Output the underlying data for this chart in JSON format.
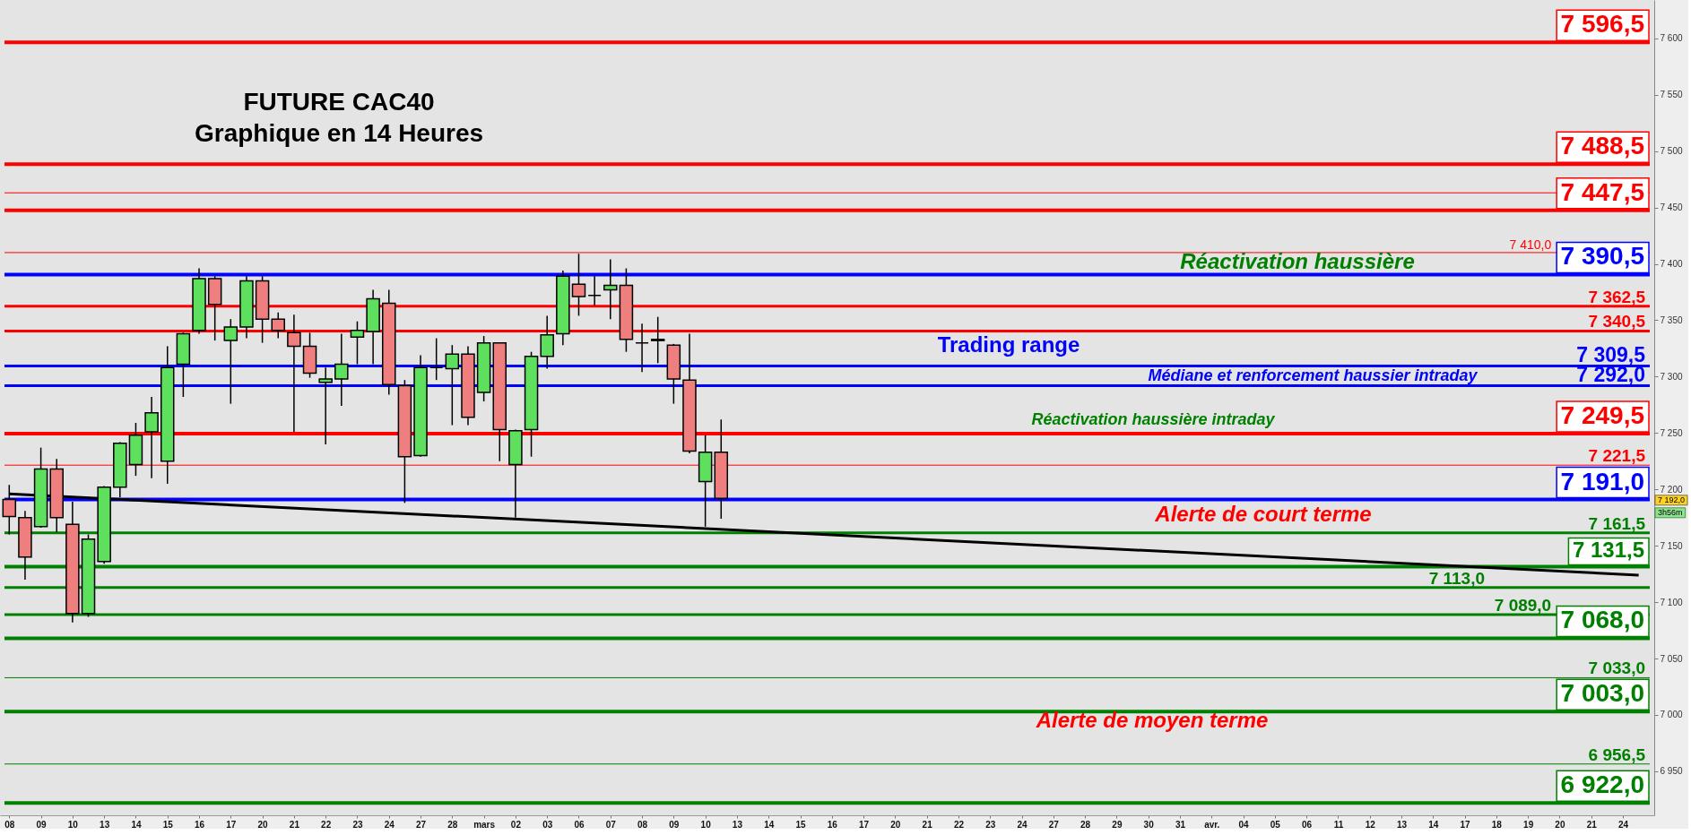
{
  "chart_data": {
    "type": "candlestick",
    "title": "FUTURE CAC40",
    "subtitle": "Graphique en 14 Heures",
    "categories": [
      "08",
      null,
      "09",
      null,
      "10",
      null,
      "13",
      null,
      "14",
      null,
      "15",
      null,
      "16",
      null,
      "17",
      null,
      "20",
      null,
      "21",
      null,
      "22",
      null,
      "23",
      null,
      "24",
      null,
      "27",
      null,
      "28",
      null,
      "mars",
      null,
      "02",
      null,
      "03",
      null,
      "06",
      null,
      "07",
      null,
      "08",
      null,
      "09",
      null,
      "10",
      null,
      "13",
      null,
      "14",
      null,
      "15",
      null,
      "16",
      null,
      "17",
      null,
      "20",
      null,
      "21",
      null,
      "22",
      null,
      "23",
      null,
      "24",
      null,
      "27",
      null,
      "28",
      null,
      "29",
      null,
      "30",
      null,
      "31",
      null,
      "avr.",
      null,
      "04",
      null,
      "05",
      null,
      "06",
      null,
      "11",
      null,
      "12",
      null,
      "13",
      null,
      "14",
      null,
      "17",
      null,
      "18",
      null,
      "19",
      null,
      "20",
      null,
      "21",
      null,
      "24",
      null
    ],
    "ohlc": [
      [
        7191,
        7204,
        7160,
        7176
      ],
      [
        7175,
        7181,
        7120,
        7140
      ],
      [
        7167,
        7237,
        7166,
        7218
      ],
      [
        7218,
        7227,
        7162,
        7175
      ],
      [
        7169,
        7189,
        7082,
        7090
      ],
      [
        7090,
        7160,
        7087,
        7156
      ],
      [
        7136,
        7203,
        7134,
        7202
      ],
      [
        7202,
        7242,
        7193,
        7241
      ],
      [
        7222,
        7259,
        7212,
        7248
      ],
      [
        7251,
        7282,
        7210,
        7268
      ],
      [
        7225,
        7327,
        7205,
        7308
      ],
      [
        7311,
        7339,
        7282,
        7338
      ],
      [
        7341,
        7396,
        7338,
        7387
      ],
      [
        7387,
        7389,
        7332,
        7364
      ],
      [
        7332,
        7351,
        7276,
        7344
      ],
      [
        7344,
        7389,
        7334,
        7385
      ],
      [
        7385,
        7389,
        7330,
        7351
      ],
      [
        7351,
        7357,
        7334,
        7341
      ],
      [
        7339,
        7355,
        7251,
        7327
      ],
      [
        7327,
        7339,
        7299,
        7303
      ],
      [
        7295,
        7308,
        7240,
        7298
      ],
      [
        7298,
        7338,
        7274,
        7311
      ],
      [
        7335,
        7349,
        7311,
        7341
      ],
      [
        7340,
        7377,
        7311,
        7369
      ],
      [
        7365,
        7377,
        7284,
        7293
      ],
      [
        7292,
        7297,
        7188,
        7229
      ],
      [
        7230,
        7319,
        7229,
        7308
      ],
      [
        7308,
        7334,
        7297,
        7308
      ],
      [
        7307,
        7328,
        7257,
        7320
      ],
      [
        7320,
        7327,
        7257,
        7264
      ],
      [
        7286,
        7336,
        7278,
        7330
      ],
      [
        7330,
        7330,
        7225,
        7253
      ],
      [
        7222,
        7253,
        7175,
        7252
      ],
      [
        7253,
        7322,
        7229,
        7318
      ],
      [
        7318,
        7354,
        7307,
        7337
      ],
      [
        7338,
        7394,
        7328,
        7389
      ],
      [
        7382,
        7409,
        7354,
        7371
      ],
      [
        7372,
        7389,
        7363,
        7372
      ],
      [
        7377,
        7404,
        7351,
        7381
      ],
      [
        7381,
        7396,
        7322,
        7333
      ],
      [
        7330,
        7347,
        7304,
        7330
      ],
      [
        7332,
        7353,
        7312,
        7333
      ],
      [
        7328,
        7329,
        7276,
        7298
      ],
      [
        7297,
        7338,
        7232,
        7234
      ],
      [
        7207,
        7248,
        7167,
        7233
      ],
      [
        7233,
        7262,
        7174,
        7192
      ],
      null,
      null,
      null,
      null,
      null,
      null,
      null,
      null,
      null,
      null,
      null,
      null,
      null,
      null,
      null,
      null,
      null,
      null,
      null,
      null,
      null,
      null,
      null,
      null,
      null,
      null,
      null,
      null,
      null,
      null,
      null,
      null,
      null,
      null,
      null,
      null,
      null,
      null,
      null,
      null,
      null,
      null,
      null,
      null,
      null,
      null,
      null,
      null,
      null,
      null,
      null,
      null,
      null,
      null,
      null,
      null,
      null,
      null
    ],
    "colors": [
      "#ef7f7f",
      "#ef7f7f",
      "#5ee05e",
      "#ef7f7f",
      "#ef7f7f",
      "#5ee05e",
      "#5ee05e",
      "#5ee05e",
      "#5ee05e",
      "#5ee05e",
      "#5ee05e",
      "#5ee05e",
      "#5ee05e",
      "#ef7f7f",
      "#5ee05e",
      "#5ee05e",
      "#ef7f7f",
      "#ef7f7f",
      "#ef7f7f",
      "#ef7f7f",
      "#5ee05e",
      "#5ee05e",
      "#5ee05e",
      "#5ee05e",
      "#ef7f7f",
      "#ef7f7f",
      "#5ee05e",
      "#000000",
      "#5ee05e",
      "#ef7f7f",
      "#5ee05e",
      "#ef7f7f",
      "#5ee05e",
      "#5ee05e",
      "#5ee05e",
      "#5ee05e",
      "#ef7f7f",
      "#000000",
      "#5ee05e",
      "#ef7f7f",
      "#000000",
      "#5ee05e",
      "#ef7f7f",
      "#ef7f7f",
      "#5ee05e",
      "#ef7f7f",
      null,
      null,
      null,
      null,
      null,
      null,
      null,
      null,
      null,
      null,
      null,
      null,
      null,
      null,
      null,
      null,
      null,
      null,
      null,
      null,
      null,
      null,
      null,
      null,
      null,
      null,
      null,
      null,
      null,
      null,
      null,
      null,
      null,
      null,
      null,
      null,
      null,
      null,
      null,
      null,
      null,
      null,
      null,
      null,
      null,
      null,
      null,
      null,
      null,
      null,
      null,
      null,
      null,
      null,
      null,
      null,
      null,
      null
    ],
    "series": [
      {
        "type": "line",
        "color": "#000000",
        "values": [
          7196,
          null,
          null,
          null,
          null,
          null,
          null,
          null,
          null,
          null,
          null,
          null,
          null,
          null,
          null,
          null,
          null,
          null,
          null,
          null,
          null,
          null,
          null,
          null,
          null,
          null,
          null,
          null,
          null,
          null,
          null,
          null,
          null,
          null,
          null,
          null,
          null,
          null,
          null,
          null,
          null,
          null,
          null,
          null,
          null,
          null,
          null,
          null,
          null,
          null,
          null,
          null,
          null,
          null,
          null,
          null,
          null,
          null,
          null,
          null,
          null,
          null,
          null,
          null,
          null,
          null,
          null,
          null,
          null,
          null,
          null,
          null,
          null,
          null,
          null,
          null,
          null,
          null,
          null,
          null,
          null,
          null,
          null,
          null,
          null,
          null,
          null,
          null,
          null,
          null,
          null,
          null,
          null,
          null,
          null,
          null,
          null,
          null,
          null,
          null,
          null,
          null,
          null,
          7124
        ]
      }
    ],
    "ylim": [
      6911,
      7634
    ],
    "yticks": [
      {
        "value": 6950,
        "label": "6 950"
      },
      {
        "value": 7000,
        "label": "7 000"
      },
      {
        "value": 7050,
        "label": "7 050"
      },
      {
        "value": 7100,
        "label": "7 100"
      },
      {
        "value": 7150,
        "label": "7 150"
      },
      {
        "value": 7200,
        "label": "7 200"
      },
      {
        "value": 7250,
        "label": "7 250"
      },
      {
        "value": 7300,
        "label": "7 300"
      },
      {
        "value": 7350,
        "label": "7 350"
      },
      {
        "value": 7400,
        "label": "7 400"
      },
      {
        "value": 7450,
        "label": "7 450"
      },
      {
        "value": 7500,
        "label": "7 500"
      },
      {
        "value": 7550,
        "label": "7 550"
      },
      {
        "value": 7600,
        "label": "7 600"
      }
    ],
    "ref_lines": [
      {
        "axis": "y",
        "value": 7596.5,
        "label": "7 596,5",
        "color": "#ff0000"
      },
      {
        "axis": "y",
        "value": 7488.5,
        "label": "7 488,5",
        "color": "#ff0000"
      },
      {
        "axis": "y",
        "value": 7463,
        "color": "#ff0000"
      },
      {
        "axis": "y",
        "value": 7447.5,
        "label": "7 447,5",
        "color": "#ff0000"
      },
      {
        "axis": "y",
        "value": 7410,
        "label": "7 410,0",
        "color": "#ff0000"
      },
      {
        "axis": "y",
        "value": 7390.5,
        "label": "7 390,5",
        "color": "#0000ff"
      },
      {
        "axis": "y",
        "value": 7362.5,
        "label": "7 362,5",
        "color": "#ff0000"
      },
      {
        "axis": "y",
        "value": 7340.5,
        "label": "7 340,5",
        "color": "#ff0000"
      },
      {
        "axis": "y",
        "value": 7309.5,
        "label": "7 309,5",
        "color": "#0000ff"
      },
      {
        "axis": "y",
        "value": 7292,
        "label": "7 292,0",
        "color": "#0000ff"
      },
      {
        "axis": "y",
        "value": 7249.5,
        "label": "7 249,5",
        "color": "#ff0000"
      },
      {
        "axis": "y",
        "value": 7221.5,
        "label": "7 221,5",
        "color": "#ff0000"
      },
      {
        "axis": "y",
        "value": 7191,
        "label": "7 191,0",
        "color": "#0000ff"
      },
      {
        "axis": "y",
        "value": 7161.5,
        "label": "7 161,5",
        "color": "#008000"
      },
      {
        "axis": "y",
        "value": 7131.5,
        "label": "7 131,5",
        "color": "#008000"
      },
      {
        "axis": "y",
        "value": 7113,
        "label": "7 113,0",
        "color": "#008000"
      },
      {
        "axis": "y",
        "value": 7089,
        "label": "7 089,0",
        "color": "#008000"
      },
      {
        "axis": "y",
        "value": 7068,
        "label": "7 068,0",
        "color": "#008000"
      },
      {
        "axis": "y",
        "value": 7033,
        "label": "7 033,0",
        "color": "#008000"
      },
      {
        "axis": "y",
        "value": 7003,
        "label": "7 003,0",
        "color": "#008000"
      },
      {
        "axis": "y",
        "value": 6956.5,
        "label": "6 956,5",
        "color": "#008000"
      },
      {
        "axis": "y",
        "value": 6922,
        "label": "6 922,0",
        "color": "#008000"
      }
    ],
    "annotations": [
      "Réactivation haussière",
      "Trading range",
      "Médiane et renforcement haussier intraday",
      "Réactivation haussière intraday",
      "Alerte de court terme",
      "Alerte de moyen terme",
      "7 192,0",
      "3h56m"
    ]
  }
}
